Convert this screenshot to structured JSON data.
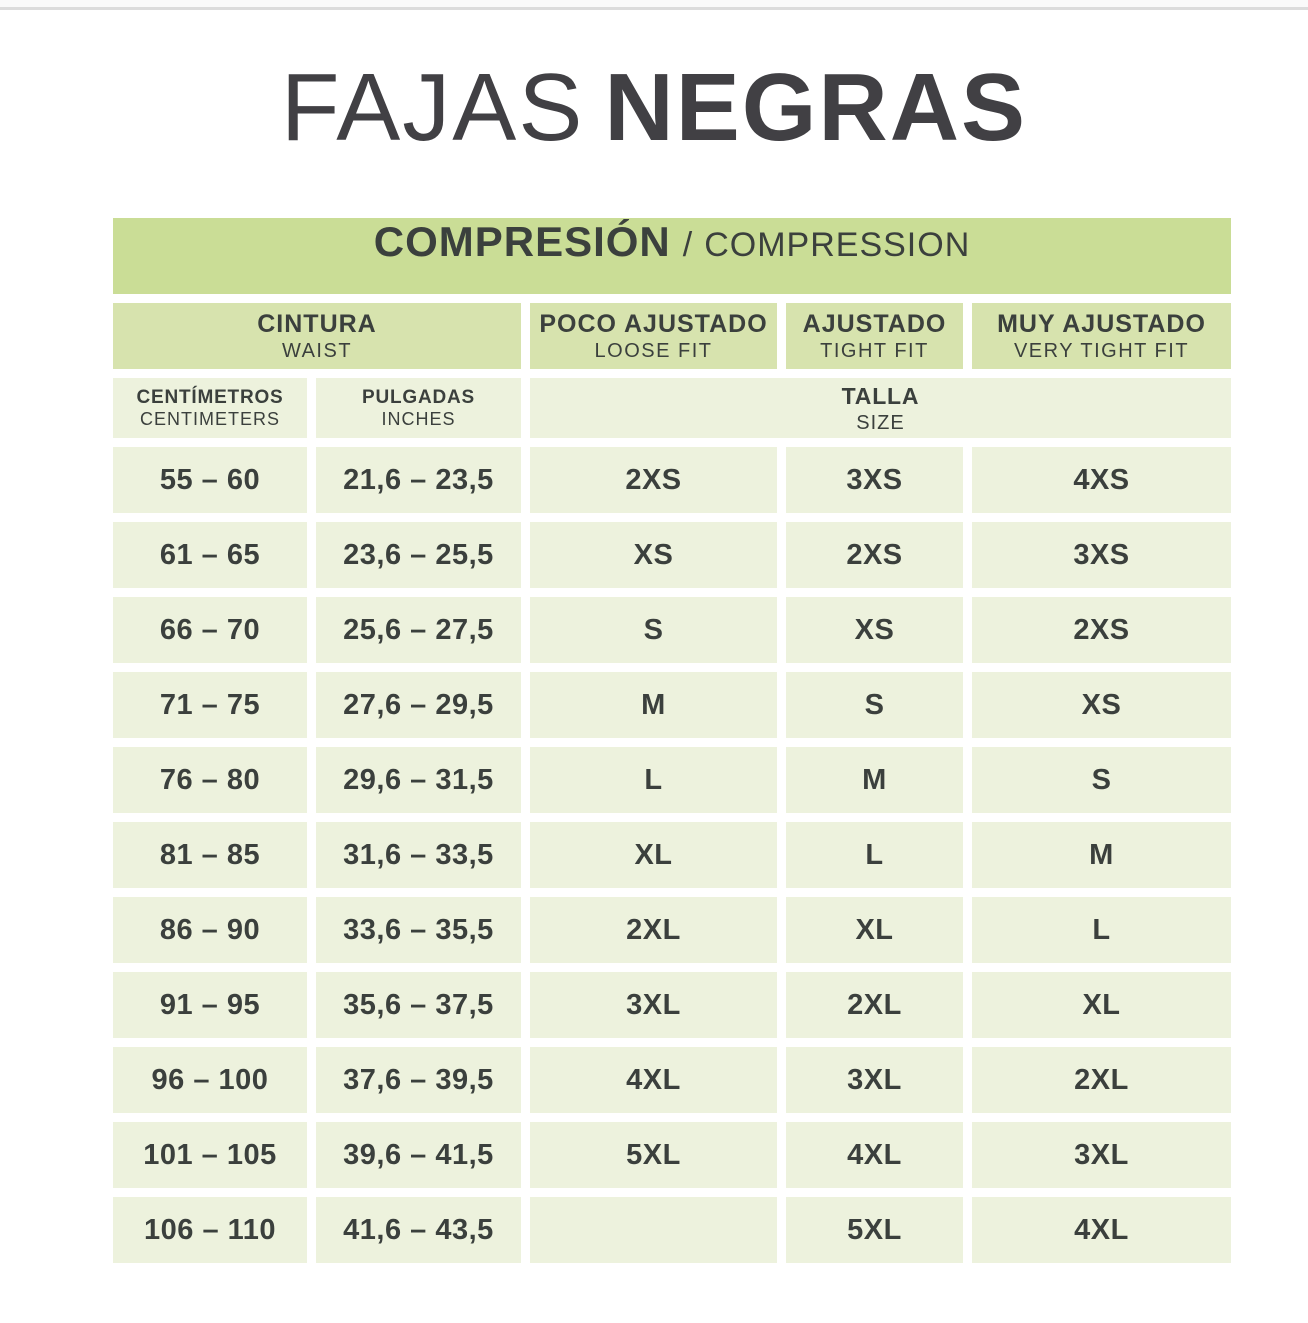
{
  "page": {
    "title_light": "FAJAS",
    "title_bold": "NEGRAS"
  },
  "table": {
    "main_header": {
      "es": "COMPRESIÓN",
      "divider": "/",
      "en": "COMPRESSION"
    },
    "col_headers": [
      {
        "es": "CINTURA",
        "en": "WAIST"
      },
      {
        "es": "POCO AJUSTADO",
        "en": "LOOSE FIT"
      },
      {
        "es": "AJUSTADO",
        "en": "TIGHT FIT"
      },
      {
        "es": "MUY AJUSTADO",
        "en": "VERY TIGHT FIT"
      }
    ],
    "sub_headers": [
      {
        "es": "CENTÍMETROS",
        "en": "CENTIMETERS"
      },
      {
        "es": "PULGADAS",
        "en": "INCHES"
      },
      {
        "es": "TALLA",
        "en": "SIZE"
      }
    ],
    "rows": [
      [
        "55 – 60",
        "21,6 – 23,5",
        "2XS",
        "3XS",
        "4XS"
      ],
      [
        "61 – 65",
        "23,6 – 25,5",
        "XS",
        "2XS",
        "3XS"
      ],
      [
        "66 – 70",
        "25,6 – 27,5",
        "S",
        "XS",
        "2XS"
      ],
      [
        "71 – 75",
        "27,6 – 29,5",
        "M",
        "S",
        "XS"
      ],
      [
        "76 – 80",
        "29,6 – 31,5",
        "L",
        "M",
        "S"
      ],
      [
        "81 – 85",
        "31,6 – 33,5",
        "XL",
        "L",
        "M"
      ],
      [
        "86 – 90",
        "33,6 – 35,5",
        "2XL",
        "XL",
        "L"
      ],
      [
        "91 – 95",
        "35,6 – 37,5",
        "3XL",
        "2XL",
        "XL"
      ],
      [
        "96 – 100",
        "37,6 – 39,5",
        "4XL",
        "3XL",
        "2XL"
      ],
      [
        "101 – 105",
        "39,6 – 41,5",
        "5XL",
        "4XL",
        "3XL"
      ],
      [
        "106 – 110",
        "41,6 – 43,5",
        "",
        "5XL",
        "4XL"
      ]
    ]
  },
  "colors": {
    "header_green": "#cadd96",
    "colhead_green": "#d7e3ae",
    "cell_green": "#edf2dd",
    "table_text": "#3b403d",
    "title_text": "#414044",
    "top_line": "#dcdcdc",
    "top_strip": "#fafafa"
  }
}
